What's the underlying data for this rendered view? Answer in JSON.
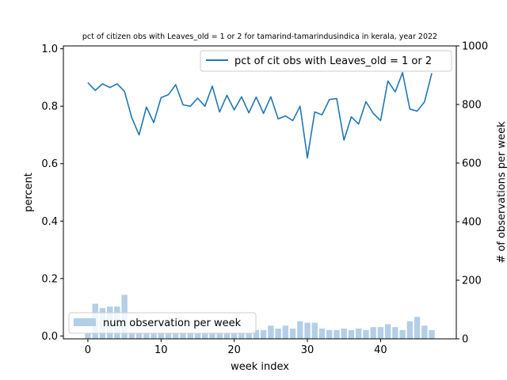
{
  "chart_data": {
    "type": "bar+line",
    "title": "pct of citizen obs with Leaves_old = 1 or 2 for tamarind-tamarindusindica in kerala, year 2022",
    "xlabel": "week index",
    "ylabel_left": "percent",
    "ylabel_right": "# of observations per week",
    "xlim": [
      -3.35,
      50.35
    ],
    "ylim_left": [
      -0.01,
      1.01
    ],
    "ylim_right": [
      0,
      1000
    ],
    "x_ticks": [
      0,
      10,
      20,
      30,
      40
    ],
    "y_left_ticks": [
      "0.0",
      "0.2",
      "0.4",
      "0.6",
      "0.8",
      "1.0"
    ],
    "y_right_ticks": [
      "0",
      "200",
      "400",
      "600",
      "800",
      "1000"
    ],
    "legend_line_label": "pct of cit obs with Leaves_old = 1 or 2",
    "legend_bar_label": "num observation per week",
    "legend_line_position": "upper right",
    "legend_bar_position": "lower left",
    "line_color": "#1f77b4",
    "bar_color": "#b3cfe7",
    "weeks": [
      0,
      1,
      2,
      3,
      4,
      5,
      6,
      7,
      8,
      9,
      10,
      11,
      12,
      13,
      14,
      15,
      16,
      17,
      18,
      19,
      20,
      21,
      22,
      23,
      24,
      25,
      26,
      27,
      28,
      29,
      30,
      31,
      32,
      33,
      34,
      35,
      36,
      37,
      38,
      39,
      40,
      41,
      42,
      43,
      44,
      45,
      46,
      47
    ],
    "pct_values": [
      0.882,
      0.855,
      0.878,
      0.865,
      0.878,
      0.852,
      0.76,
      0.7,
      0.797,
      0.743,
      0.83,
      0.84,
      0.875,
      0.805,
      0.8,
      0.828,
      0.8,
      0.87,
      0.78,
      0.838,
      0.787,
      0.833,
      0.777,
      0.832,
      0.775,
      0.833,
      0.756,
      0.766,
      0.75,
      0.8,
      0.62,
      0.78,
      0.77,
      0.823,
      0.827,
      0.682,
      0.763,
      0.738,
      0.816,
      0.775,
      0.75,
      0.888,
      0.85,
      0.917,
      0.79,
      0.783,
      0.815,
      0.915
    ],
    "obs_counts": [
      20,
      120,
      105,
      110,
      110,
      150,
      20,
      20,
      20,
      20,
      20,
      20,
      20,
      20,
      20,
      20,
      20,
      20,
      20,
      20,
      20,
      20,
      20,
      30,
      30,
      45,
      35,
      45,
      35,
      60,
      55,
      55,
      35,
      30,
      30,
      35,
      30,
      35,
      30,
      40,
      40,
      50,
      40,
      30,
      60,
      75,
      45,
      30
    ]
  }
}
